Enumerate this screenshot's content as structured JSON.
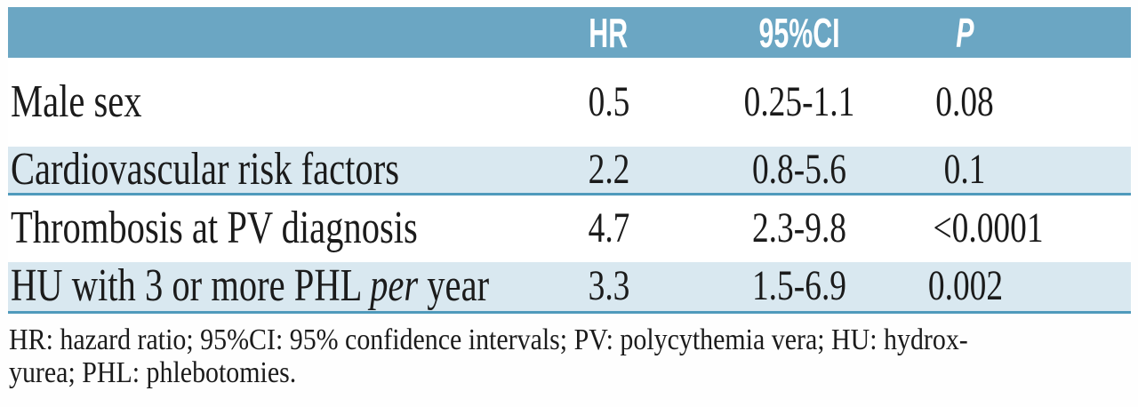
{
  "table": {
    "columns": {
      "hr": "HR",
      "ci": "95%CI",
      "p": "P"
    },
    "rows": [
      {
        "label": "Male sex",
        "hr": "0.5",
        "ci": "0.25-1.1",
        "p": "0.08"
      },
      {
        "label": "Cardiovascular risk factors",
        "hr": "2.2",
        "ci": "0.8-5.6",
        "p": "0.1"
      },
      {
        "label": "Thrombosis at PV diagnosis",
        "hr": "4.7",
        "ci": "2.3-9.8",
        "p": "<0.0001"
      },
      {
        "label_pre": "HU with 3 or more PHL ",
        "label_em": "per",
        "label_post": " year",
        "hr": "3.3",
        "ci": "1.5-6.9",
        "p": "0.002"
      }
    ],
    "footnote_line1": "HR: hazard ratio; 95%CI: 95% confidence intervals; PV: polycythemia vera; HU: hydrox-",
    "footnote_line2": "yurea; PHL: phlebotomies."
  },
  "colors": {
    "header_bg": "#6BA6C3",
    "row_alt_bg": "#D9E8F0",
    "rule": "#4F9ABC",
    "header_text": "#FFFFFF",
    "body_text": "#1B1B1B"
  }
}
